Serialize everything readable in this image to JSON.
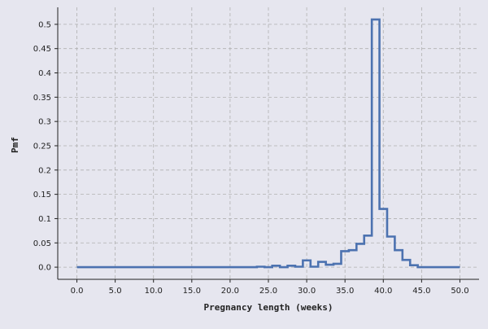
{
  "chart_data": {
    "type": "line",
    "style": "step",
    "xlabel": "Pregnancy length (weeks)",
    "ylabel": "Pmf",
    "xlim": [
      -2.5,
      52.5
    ],
    "ylim": [
      -0.025,
      0.535
    ],
    "x_ticks": [
      0,
      5,
      10,
      15,
      20,
      25,
      30,
      35,
      40,
      45,
      50
    ],
    "x_tick_labels": [
      "0.0",
      "5.0",
      "10.0",
      "15.0",
      "20.0",
      "25.0",
      "30.0",
      "35.0",
      "40.0",
      "45.0",
      "50.0"
    ],
    "y_ticks": [
      0,
      0.05,
      0.1,
      0.15,
      0.2,
      0.25,
      0.3,
      0.35,
      0.4,
      0.45,
      0.5
    ],
    "y_tick_labels": [
      "0.0",
      "0.05",
      "0.1",
      "0.15",
      "0.2",
      "0.25",
      "0.3",
      "0.35",
      "0.4",
      "0.45",
      "0.5"
    ],
    "grid": true,
    "legend": "none",
    "colors": {
      "line": "#4c72b0",
      "background": "#e6e6ef",
      "grid": "#b0b0b0",
      "axis": "#222222"
    },
    "series": [
      {
        "x": [
          0,
          1,
          2,
          3,
          4,
          5,
          6,
          7,
          8,
          9,
          10,
          11,
          12,
          13,
          14,
          15,
          16,
          17,
          18,
          19,
          20,
          21,
          22,
          23,
          24,
          25,
          26,
          27,
          28,
          29,
          30,
          31,
          32,
          33,
          34,
          35,
          36,
          37,
          38,
          39,
          40,
          41,
          42,
          43,
          44,
          45,
          46,
          47,
          48,
          49,
          50
        ],
        "y": [
          0,
          0,
          0,
          0,
          0,
          0,
          0,
          0,
          0,
          0,
          0,
          0,
          0,
          0,
          0,
          0,
          0,
          0,
          0,
          0,
          0,
          0,
          0,
          0,
          0.001,
          0,
          0.003,
          0,
          0.003,
          0.001,
          0.014,
          0.001,
          0.011,
          0.005,
          0.007,
          0.033,
          0.035,
          0.048,
          0.065,
          0.51,
          0.12,
          0.063,
          0.035,
          0.015,
          0.004,
          0,
          0,
          0,
          0,
          0,
          0
        ]
      }
    ]
  }
}
